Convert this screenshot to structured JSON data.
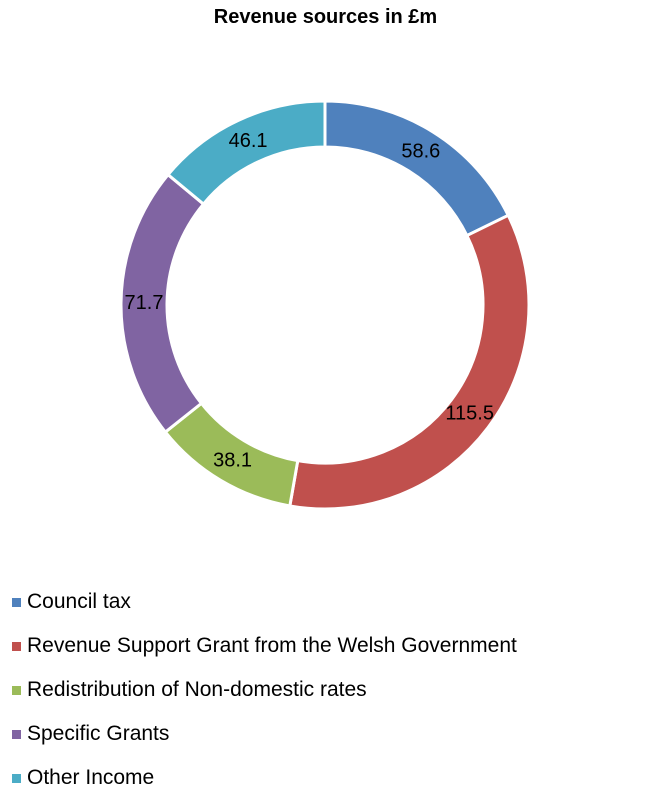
{
  "chart_data": {
    "type": "pie",
    "variant": "donut",
    "title": "Revenue sources in £m",
    "legend_position": "bottom",
    "categories": [
      "Council tax",
      "Revenue Support Grant from the Welsh Government",
      "Redistribution of Non-domestic rates",
      "Specific Grants",
      "Other Income"
    ],
    "values": [
      58.6,
      115.5,
      38.1,
      71.7,
      46.1
    ],
    "data_labels": [
      "58.6",
      "115.5",
      "38.1",
      "71.7",
      "46.1"
    ],
    "colors": [
      "#4f81bd",
      "#c0504d",
      "#9bbb59",
      "#8064a2",
      "#4bacc6"
    ]
  }
}
